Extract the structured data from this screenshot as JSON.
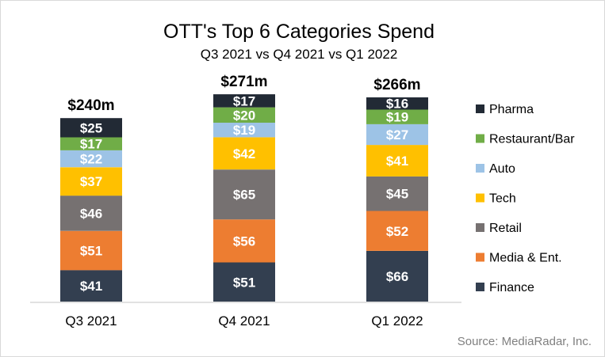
{
  "chart_data": {
    "type": "bar",
    "stacked": true,
    "title": "OTT's Top 6 Categories Spend",
    "subtitle": "Q3 2021 vs Q4 2021 vs Q1 2022",
    "xlabel": "",
    "ylabel": "",
    "categories": [
      "Q3 2021",
      "Q4 2021",
      "Q1 2022"
    ],
    "series": [
      {
        "name": "Finance",
        "color": "#333f50",
        "values": [
          41,
          51,
          66
        ]
      },
      {
        "name": "Media & Ent.",
        "color": "#ed7d31",
        "values": [
          51,
          56,
          52
        ]
      },
      {
        "name": "Retail",
        "color": "#767171",
        "values": [
          46,
          65,
          45
        ]
      },
      {
        "name": "Tech",
        "color": "#ffc000",
        "values": [
          37,
          42,
          41
        ]
      },
      {
        "name": "Auto",
        "color": "#9dc3e6",
        "values": [
          22,
          19,
          27
        ]
      },
      {
        "name": "Restaurant/Bar",
        "color": "#70ad47",
        "values": [
          17,
          20,
          19
        ]
      },
      {
        "name": "Pharma",
        "color": "#222a35",
        "values": [
          25,
          17,
          16
        ]
      }
    ],
    "totals": [
      "$240m",
      "$271m",
      "$266m"
    ],
    "label_prefix": "$",
    "ylim": [
      0,
      280
    ],
    "grid": false,
    "legend_placement": "right",
    "legend_order": [
      "Pharma",
      "Restaurant/Bar",
      "Auto",
      "Tech",
      "Retail",
      "Media & Ent.",
      "Finance"
    ],
    "source": "Source: MediaRadar, Inc."
  }
}
